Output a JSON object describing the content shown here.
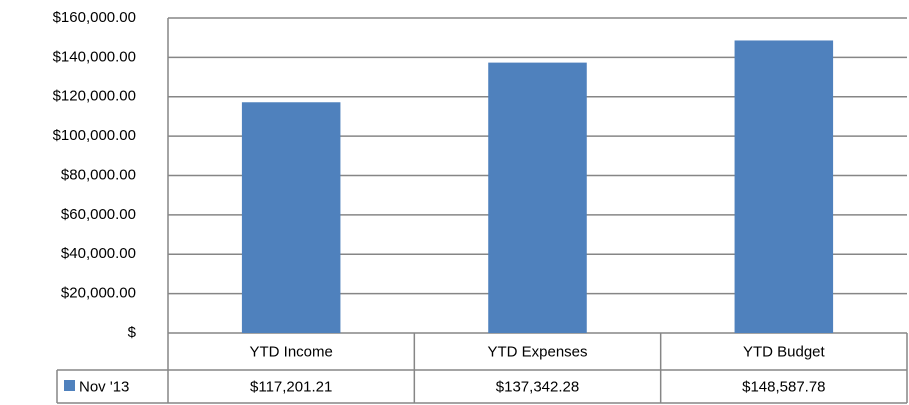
{
  "chart_data": {
    "type": "bar",
    "categories": [
      "YTD Income",
      "YTD Expenses",
      "YTD Budget"
    ],
    "series": [
      {
        "name": "Nov '13",
        "color": "#4f81bd",
        "values": [
          117201.21,
          137342.28,
          148587.78
        ],
        "value_labels": [
          "$117,201.21",
          "$137,342.28",
          "$148,587.78"
        ]
      }
    ],
    "ylim": [
      0,
      160000
    ],
    "yticks": [
      {
        "value": 0,
        "label": "$"
      },
      {
        "value": 20000,
        "label": "$20,000.00"
      },
      {
        "value": 40000,
        "label": "$40,000.00"
      },
      {
        "value": 60000,
        "label": "$60,000.00"
      },
      {
        "value": 80000,
        "label": "$80,000.00"
      },
      {
        "value": 100000,
        "label": "$100,000.00"
      },
      {
        "value": 120000,
        "label": "$120,000.00"
      },
      {
        "value": 140000,
        "label": "$140,000.00"
      },
      {
        "value": 160000,
        "label": "$160,000.00"
      }
    ],
    "grid": true
  }
}
